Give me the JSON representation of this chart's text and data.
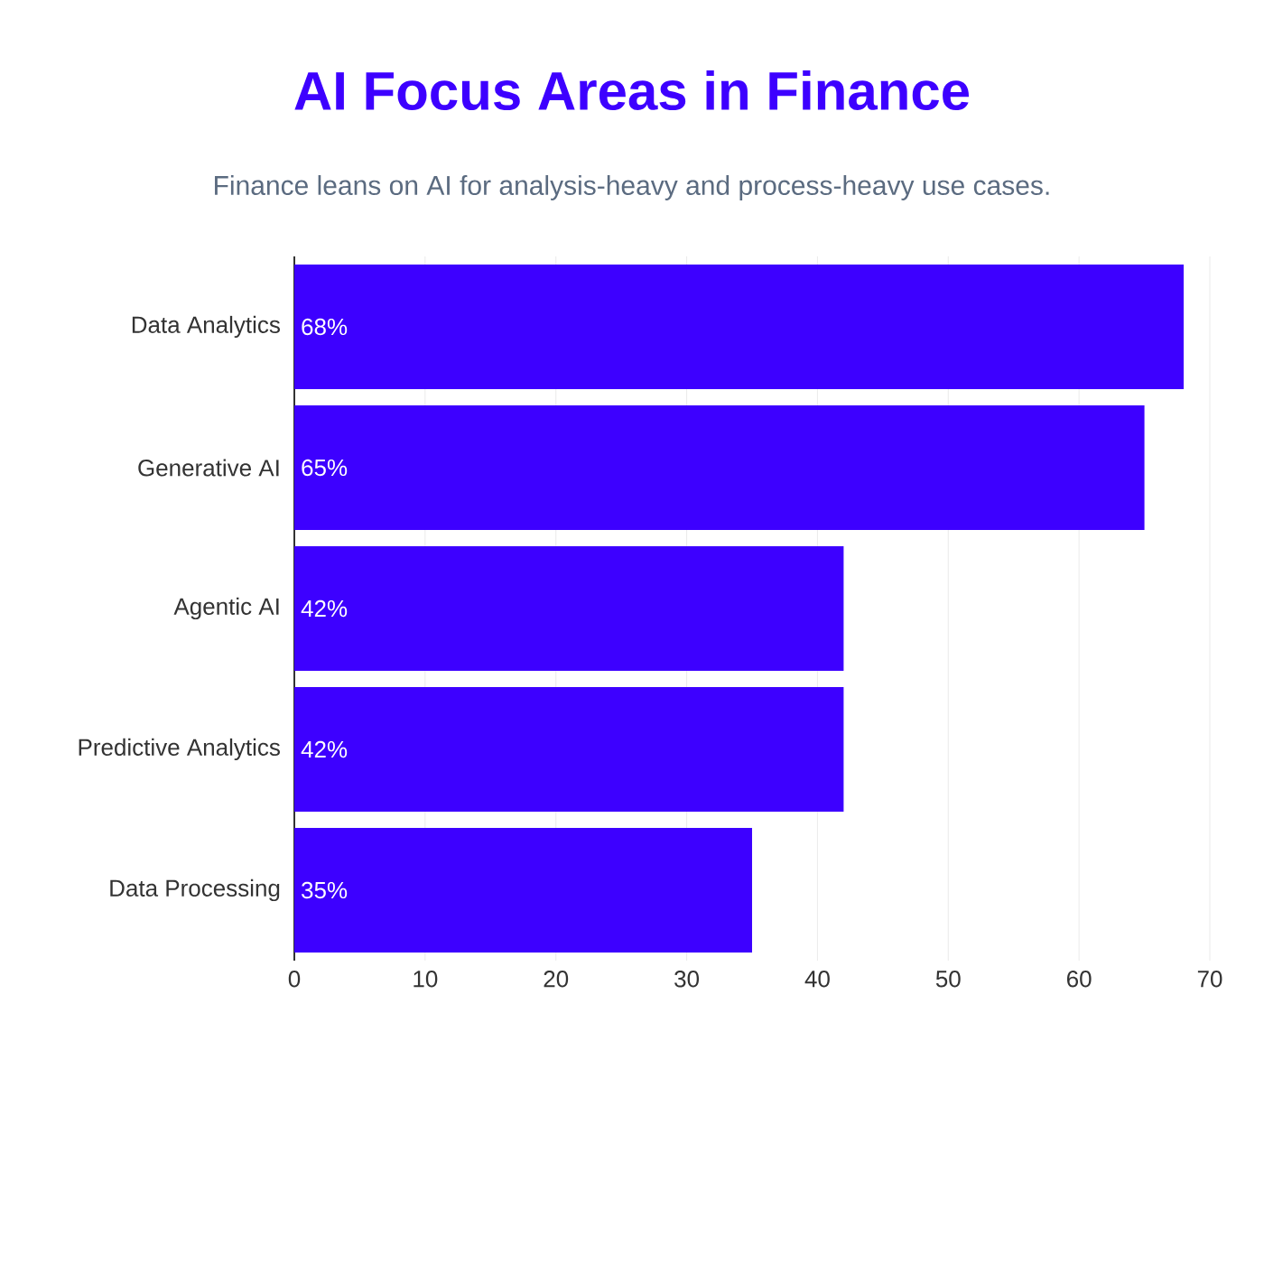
{
  "chart_data": {
    "type": "bar",
    "orientation": "horizontal",
    "title": "AI Focus Areas in Finance",
    "subtitle": "Finance leans on AI for analysis-heavy and process-heavy use cases.",
    "categories": [
      "Data Analytics",
      "Generative AI",
      "Agentic AI",
      "Predictive Analytics",
      "Data Processing"
    ],
    "values": [
      68,
      65,
      42,
      42,
      35
    ],
    "value_labels": [
      "68%",
      "65%",
      "42%",
      "42%",
      "35%"
    ],
    "color": "#3d00ff",
    "xlim": [
      0,
      70
    ],
    "xticks": [
      0,
      10,
      20,
      30,
      40,
      50,
      60,
      70
    ],
    "grid": "x"
  }
}
